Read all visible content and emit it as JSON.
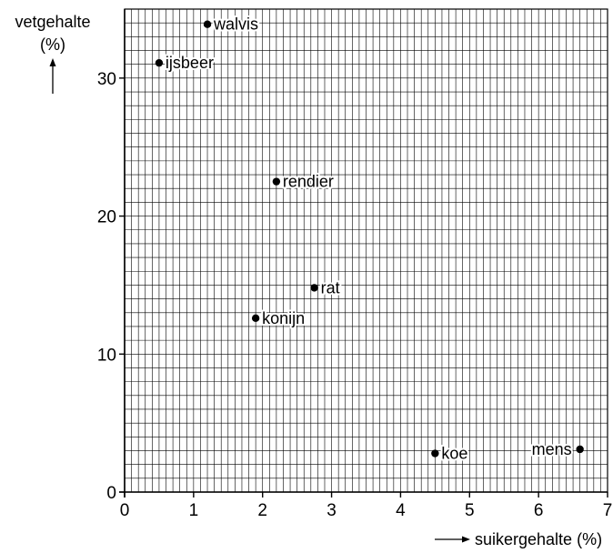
{
  "chart_data": {
    "type": "scatter",
    "title": "",
    "xlabel": "suikergehalte (%)",
    "ylabel_line1": "vetgehalte",
    "ylabel_line2": "(%)",
    "xlim": [
      0,
      7
    ],
    "ylim": [
      0,
      35
    ],
    "x_ticks": [
      0,
      1,
      2,
      3,
      4,
      5,
      6,
      7
    ],
    "y_ticks": [
      0,
      10,
      20,
      30
    ],
    "grid": true,
    "points": [
      {
        "label": "walvis",
        "x": 1.2,
        "y": 33.9,
        "label_side": "right"
      },
      {
        "label": "ijsbeer",
        "x": 0.5,
        "y": 31.1,
        "label_side": "right"
      },
      {
        "label": "rendier",
        "x": 2.2,
        "y": 22.5,
        "label_side": "right"
      },
      {
        "label": "rat",
        "x": 2.75,
        "y": 14.8,
        "label_side": "right"
      },
      {
        "label": "konijn",
        "x": 1.9,
        "y": 12.6,
        "label_side": "right"
      },
      {
        "label": "koe",
        "x": 4.5,
        "y": 2.8,
        "label_side": "right"
      },
      {
        "label": "mens",
        "x": 6.6,
        "y": 3.1,
        "label_side": "left"
      }
    ]
  }
}
